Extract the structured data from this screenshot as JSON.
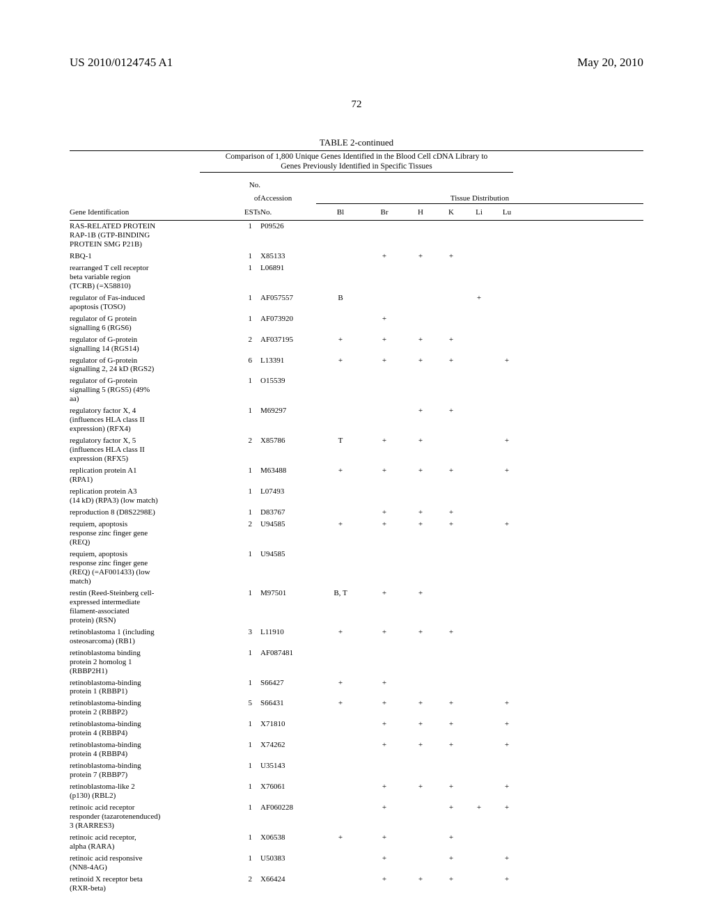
{
  "header": {
    "publication_number": "US 2010/0124745 A1",
    "publication_date": "May 20, 2010",
    "page_number": "72"
  },
  "table": {
    "title": "TABLE 2-continued",
    "caption_line1": "Comparison of 1,800 Unique Genes Identified in the Blood Cell cDNA Library to",
    "caption_line2": "Genes Previously Identified in Specific Tissues",
    "header": {
      "gene_id": "Gene Identification",
      "no_of_top": "No.",
      "no_of_mid": "of",
      "ests_bottom": "ESTs",
      "accession_top": "Accession",
      "accession_bottom": "No.",
      "tissue_distribution": "Tissue Distribution",
      "cols": {
        "bl": "Bl",
        "br": "Br",
        "h": "H",
        "k": "K",
        "li": "Li",
        "lu": "Lu"
      }
    },
    "rows": [
      {
        "gene": [
          "RAS-RELATED PROTEIN",
          "RAP-1B (GTP-BINDING",
          "PROTEIN SMG P21B)"
        ],
        "ests": "1",
        "acc": "P09526",
        "bl": "",
        "br": "",
        "h": "",
        "k": "",
        "li": "",
        "lu": ""
      },
      {
        "gene": [
          "RBQ-1"
        ],
        "ests": "1",
        "acc": "X85133",
        "bl": "",
        "br": "+",
        "h": "+",
        "k": "+",
        "li": "",
        "lu": ""
      },
      {
        "gene": [
          "rearranged T cell receptor",
          "beta variable region",
          "(TCRB) (=X58810)"
        ],
        "ests": "1",
        "acc": "L06891",
        "bl": "",
        "br": "",
        "h": "",
        "k": "",
        "li": "",
        "lu": ""
      },
      {
        "gene": [
          "regulator of Fas-induced",
          "apoptosis (TOSO)"
        ],
        "ests": "1",
        "acc": "AF057557",
        "bl": "B",
        "br": "",
        "h": "",
        "k": "",
        "li": "+",
        "lu": ""
      },
      {
        "gene": [
          "regulator of G protein",
          "signalling 6 (RGS6)"
        ],
        "ests": "1",
        "acc": "AF073920",
        "bl": "",
        "br": "+",
        "h": "",
        "k": "",
        "li": "",
        "lu": ""
      },
      {
        "gene": [
          "regulator of G-protein",
          "signalling 14 (RGS14)"
        ],
        "ests": "2",
        "acc": "AF037195",
        "bl": "+",
        "br": "+",
        "h": "+",
        "k": "+",
        "li": "",
        "lu": ""
      },
      {
        "gene": [
          "regulator of G-protein",
          "signalling 2, 24 kD (RGS2)"
        ],
        "ests": "6",
        "acc": "L13391",
        "bl": "+",
        "br": "+",
        "h": "+",
        "k": "+",
        "li": "",
        "lu": "+"
      },
      {
        "gene": [
          "regulator of G-protein",
          "signalling 5 (RGS5) (49%",
          "aa)"
        ],
        "ests": "1",
        "acc": "O15539",
        "bl": "",
        "br": "",
        "h": "",
        "k": "",
        "li": "",
        "lu": ""
      },
      {
        "gene": [
          "regulatory factor X, 4",
          "(influences HLA class II",
          "expression) (RFX4)"
        ],
        "ests": "1",
        "acc": "M69297",
        "bl": "",
        "br": "",
        "h": "+",
        "k": "+",
        "li": "",
        "lu": ""
      },
      {
        "gene": [
          "regulatory factor X, 5",
          "(influences HLA class II",
          "expression (RFX5)"
        ],
        "ests": "2",
        "acc": "X85786",
        "bl": "T",
        "br": "+",
        "h": "+",
        "k": "",
        "li": "",
        "lu": "+"
      },
      {
        "gene": [
          "replication protein A1",
          "(RPA1)"
        ],
        "ests": "1",
        "acc": "M63488",
        "bl": "+",
        "br": "+",
        "h": "+",
        "k": "+",
        "li": "",
        "lu": "+"
      },
      {
        "gene": [
          "replication protein A3",
          "(14 kD) (RPA3) (low match)"
        ],
        "ests": "1",
        "acc": "L07493",
        "bl": "",
        "br": "",
        "h": "",
        "k": "",
        "li": "",
        "lu": ""
      },
      {
        "gene": [
          "reproduction 8 (D8S2298E)"
        ],
        "ests": "1",
        "acc": "D83767",
        "bl": "",
        "br": "+",
        "h": "+",
        "k": "+",
        "li": "",
        "lu": ""
      },
      {
        "gene": [
          "requiem, apoptosis",
          "response zinc finger gene",
          "(REQ)"
        ],
        "ests": "2",
        "acc": "U94585",
        "bl": "+",
        "br": "+",
        "h": "+",
        "k": "+",
        "li": "",
        "lu": "+"
      },
      {
        "gene": [
          "requiem, apoptosis",
          "response zinc finger gene",
          "(REQ) (=AF001433) (low",
          "match)"
        ],
        "ests": "1",
        "acc": "U94585",
        "bl": "",
        "br": "",
        "h": "",
        "k": "",
        "li": "",
        "lu": ""
      },
      {
        "gene": [
          "restin (Reed-Steinberg cell-",
          "expressed intermediate",
          "filament-associated",
          "protein) (RSN)"
        ],
        "ests": "1",
        "acc": "M97501",
        "bl": "B, T",
        "br": "+",
        "h": "+",
        "k": "",
        "li": "",
        "lu": ""
      },
      {
        "gene": [
          "retinoblastoma 1 (including",
          "osteosarcoma) (RB1)"
        ],
        "ests": "3",
        "acc": "L11910",
        "bl": "+",
        "br": "+",
        "h": "+",
        "k": "+",
        "li": "",
        "lu": ""
      },
      {
        "gene": [
          "retinoblastoma binding",
          "protein 2 homolog 1",
          "(RBBP2H1)"
        ],
        "ests": "1",
        "acc": "AF087481",
        "bl": "",
        "br": "",
        "h": "",
        "k": "",
        "li": "",
        "lu": ""
      },
      {
        "gene": [
          "retinoblastoma-binding",
          "protein 1 (RBBP1)"
        ],
        "ests": "1",
        "acc": "S66427",
        "bl": "+",
        "br": "+",
        "h": "",
        "k": "",
        "li": "",
        "lu": ""
      },
      {
        "gene": [
          "retinoblastoma-binding",
          "protein 2 (RBBP2)"
        ],
        "ests": "5",
        "acc": "S66431",
        "bl": "+",
        "br": "+",
        "h": "+",
        "k": "+",
        "li": "",
        "lu": "+"
      },
      {
        "gene": [
          "retinoblastoma-binding",
          "protein 4 (RBBP4)"
        ],
        "ests": "1",
        "acc": "X71810",
        "bl": "",
        "br": "+",
        "h": "+",
        "k": "+",
        "li": "",
        "lu": "+"
      },
      {
        "gene": [
          "retinoblastoma-binding",
          "protein 4 (RBBP4)"
        ],
        "ests": "1",
        "acc": "X74262",
        "bl": "",
        "br": "+",
        "h": "+",
        "k": "+",
        "li": "",
        "lu": "+"
      },
      {
        "gene": [
          "retinoblastoma-binding",
          "protein 7 (RBBP7)"
        ],
        "ests": "1",
        "acc": "U35143",
        "bl": "",
        "br": "",
        "h": "",
        "k": "",
        "li": "",
        "lu": ""
      },
      {
        "gene": [
          "retinoblastoma-like 2",
          "(p130) (RBL2)"
        ],
        "ests": "1",
        "acc": "X76061",
        "bl": "",
        "br": "+",
        "h": "+",
        "k": "+",
        "li": "",
        "lu": "+"
      },
      {
        "gene": [
          "retinoic acid receptor",
          "responder (tazarotenenduced)",
          "3 (RARRES3)"
        ],
        "ests": "1",
        "acc": "AF060228",
        "bl": "",
        "br": "+",
        "h": "",
        "k": "+",
        "li": "+",
        "lu": "+"
      },
      {
        "gene": [
          "retinoic acid receptor,",
          "alpha (RARA)"
        ],
        "ests": "1",
        "acc": "X06538",
        "bl": "+",
        "br": "+",
        "h": "",
        "k": "+",
        "li": "",
        "lu": ""
      },
      {
        "gene": [
          "retinoic acid responsive",
          "(NN8-4AG)"
        ],
        "ests": "1",
        "acc": "U50383",
        "bl": "",
        "br": "+",
        "h": "",
        "k": "+",
        "li": "",
        "lu": "+"
      },
      {
        "gene": [
          "retinoid X receptor beta",
          "(RXR-beta)"
        ],
        "ests": "2",
        "acc": "X66424",
        "bl": "",
        "br": "+",
        "h": "+",
        "k": "+",
        "li": "",
        "lu": "+"
      }
    ]
  }
}
